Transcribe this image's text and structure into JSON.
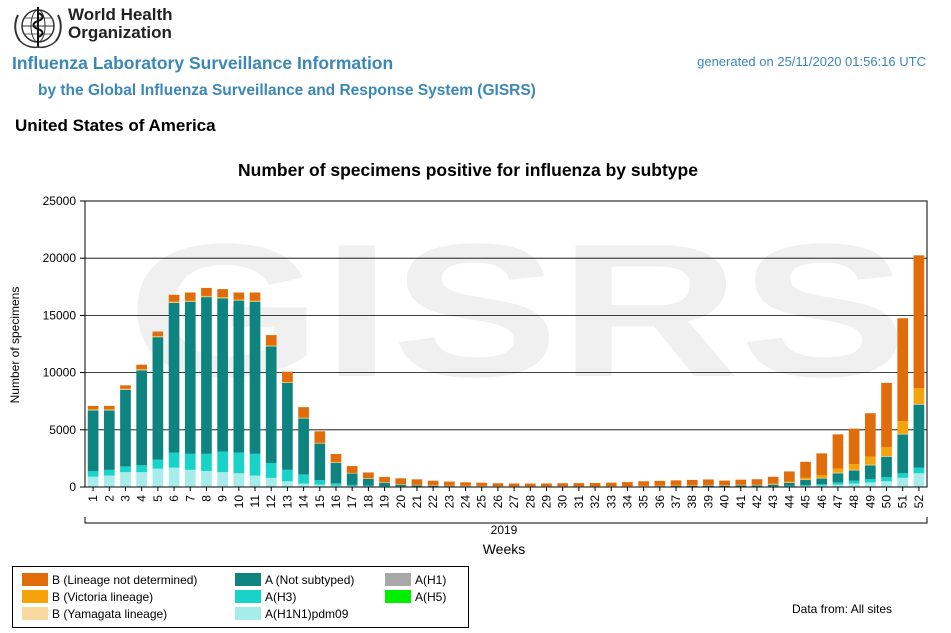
{
  "header": {
    "org_line1": "World Health",
    "org_line2": "Organization",
    "title": "Influenza Laboratory Surveillance Information",
    "subtitle": "by the Global Influenza Surveillance and Response System (GISRS)",
    "generated": "generated on 25/11/2020 01:56:16 UTC",
    "country": "United States of America"
  },
  "footer": {
    "data_from": "Data from: All sites"
  },
  "watermark": "GISRS",
  "colors": {
    "B_not_determined": "#e06c0a",
    "B_victoria": "#f5a30a",
    "B_yamagata": "#fad9a0",
    "A_not_subtyped": "#0e8480",
    "A_H3": "#18d3c7",
    "A_H1N1pdm09": "#a6ecea",
    "A_H1": "#a8a8a8",
    "A_H5": "#00ee00"
  },
  "chart_data": {
    "type": "bar",
    "stacked": true,
    "title": "Number of specimens positive for influenza by subtype",
    "xlabel": "Weeks",
    "ylabel": "Number of specimens",
    "year_label": "2019",
    "ylim": [
      0,
      25000
    ],
    "yticks": [
      0,
      5000,
      10000,
      15000,
      20000,
      25000
    ],
    "grid": true,
    "categories": [
      "1",
      "2",
      "3",
      "4",
      "5",
      "6",
      "7",
      "8",
      "9",
      "10",
      "11",
      "12",
      "13",
      "14",
      "15",
      "16",
      "17",
      "18",
      "19",
      "20",
      "21",
      "22",
      "23",
      "24",
      "25",
      "26",
      "27",
      "28",
      "29",
      "30",
      "31",
      "32",
      "33",
      "34",
      "35",
      "36",
      "37",
      "38",
      "39",
      "40",
      "41",
      "42",
      "43",
      "44",
      "45",
      "46",
      "47",
      "48",
      "49",
      "50",
      "51",
      "52"
    ],
    "series": [
      {
        "name": "A(H1N1)pdm09",
        "key": "A_H1N1pdm09",
        "values": [
          900,
          1000,
          1300,
          1300,
          1600,
          1700,
          1500,
          1400,
          1300,
          1200,
          1000,
          800,
          500,
          300,
          200,
          120,
          80,
          60,
          40,
          30,
          20,
          15,
          10,
          10,
          8,
          5,
          5,
          5,
          5,
          5,
          5,
          5,
          5,
          5,
          5,
          8,
          10,
          10,
          15,
          20,
          20,
          25,
          30,
          50,
          80,
          120,
          200,
          300,
          400,
          500,
          800,
          1200
        ]
      },
      {
        "name": "A(H3)",
        "key": "A_H3",
        "values": [
          500,
          500,
          500,
          600,
          800,
          1300,
          1400,
          1500,
          1800,
          1800,
          1900,
          1300,
          1000,
          800,
          400,
          200,
          100,
          60,
          40,
          30,
          20,
          15,
          10,
          10,
          8,
          5,
          5,
          5,
          5,
          5,
          5,
          5,
          5,
          5,
          5,
          8,
          10,
          10,
          15,
          20,
          20,
          25,
          30,
          50,
          80,
          120,
          200,
          250,
          300,
          350,
          400,
          500
        ]
      },
      {
        "name": "A(Not subtyped)",
        "key": "A_not_subtyped",
        "values": [
          5300,
          5200,
          6700,
          8300,
          10700,
          13100,
          13300,
          13700,
          13400,
          13300,
          13300,
          10200,
          7600,
          4900,
          3200,
          1800,
          1000,
          600,
          300,
          150,
          100,
          80,
          60,
          50,
          40,
          30,
          25,
          20,
          20,
          20,
          20,
          20,
          30,
          30,
          50,
          60,
          70,
          80,
          90,
          80,
          100,
          100,
          150,
          250,
          450,
          500,
          800,
          900,
          1200,
          1800,
          3400,
          5500
        ]
      },
      {
        "name": "B (Victoria lineage)",
        "key": "B_victoria",
        "values": [
          50,
          50,
          50,
          50,
          50,
          60,
          60,
          60,
          60,
          60,
          60,
          50,
          50,
          50,
          40,
          40,
          30,
          30,
          30,
          30,
          30,
          20,
          20,
          20,
          20,
          20,
          20,
          20,
          20,
          20,
          20,
          20,
          20,
          20,
          20,
          20,
          20,
          20,
          20,
          20,
          30,
          30,
          50,
          80,
          150,
          250,
          350,
          500,
          700,
          800,
          1100,
          1400
        ]
      },
      {
        "name": "B (Yamagata lineage)",
        "key": "B_yamagata",
        "values": [
          40,
          40,
          40,
          40,
          40,
          40,
          40,
          40,
          40,
          40,
          40,
          30,
          30,
          30,
          30,
          30,
          20,
          20,
          20,
          20,
          20,
          20,
          20,
          20,
          20,
          20,
          20,
          20,
          20,
          20,
          20,
          20,
          20,
          20,
          20,
          20,
          20,
          20,
          20,
          20,
          20,
          20,
          30,
          30,
          40,
          50,
          50,
          50,
          50,
          50,
          50,
          50
        ]
      },
      {
        "name": "B (Lineage not determined)",
        "key": "B_not_determined",
        "values": [
          300,
          300,
          300,
          400,
          400,
          600,
          700,
          700,
          700,
          600,
          700,
          900,
          900,
          900,
          1000,
          700,
          600,
          500,
          450,
          500,
          480,
          400,
          350,
          300,
          280,
          250,
          230,
          230,
          240,
          260,
          270,
          280,
          300,
          350,
          400,
          420,
          450,
          480,
          500,
          400,
          450,
          480,
          600,
          900,
          1400,
          1900,
          3000,
          3100,
          3800,
          5600,
          9000,
          11600
        ]
      },
      {
        "name": "A(H1)",
        "key": "A_H1",
        "values": [
          0,
          0,
          0,
          0,
          0,
          0,
          0,
          0,
          0,
          0,
          0,
          0,
          0,
          0,
          0,
          0,
          0,
          0,
          0,
          0,
          0,
          0,
          0,
          0,
          0,
          0,
          0,
          0,
          0,
          0,
          0,
          0,
          0,
          0,
          0,
          0,
          0,
          0,
          0,
          0,
          0,
          0,
          0,
          0,
          0,
          0,
          0,
          0,
          0,
          0,
          0,
          0
        ]
      },
      {
        "name": "A(H5)",
        "key": "A_H5",
        "values": [
          0,
          0,
          0,
          0,
          0,
          0,
          0,
          0,
          0,
          0,
          0,
          0,
          0,
          0,
          0,
          0,
          0,
          0,
          0,
          0,
          0,
          0,
          0,
          0,
          0,
          0,
          0,
          0,
          0,
          0,
          0,
          0,
          0,
          0,
          0,
          0,
          0,
          0,
          0,
          0,
          0,
          0,
          0,
          0,
          0,
          0,
          0,
          0,
          0,
          0,
          0,
          0
        ]
      }
    ],
    "legend": [
      {
        "label": "B (Lineage not determined)",
        "key": "B_not_determined"
      },
      {
        "label": "B (Victoria lineage)",
        "key": "B_victoria"
      },
      {
        "label": "B (Yamagata lineage)",
        "key": "B_yamagata"
      },
      {
        "label": "A (Not subtyped)",
        "key": "A_not_subtyped"
      },
      {
        "label": "A(H3)",
        "key": "A_H3"
      },
      {
        "label": "A(H1N1)pdm09",
        "key": "A_H1N1pdm09"
      },
      {
        "label": "A(H1)",
        "key": "A_H1"
      },
      {
        "label": "A(H5)",
        "key": "A_H5"
      }
    ],
    "legend_placement": "bottom-left"
  }
}
